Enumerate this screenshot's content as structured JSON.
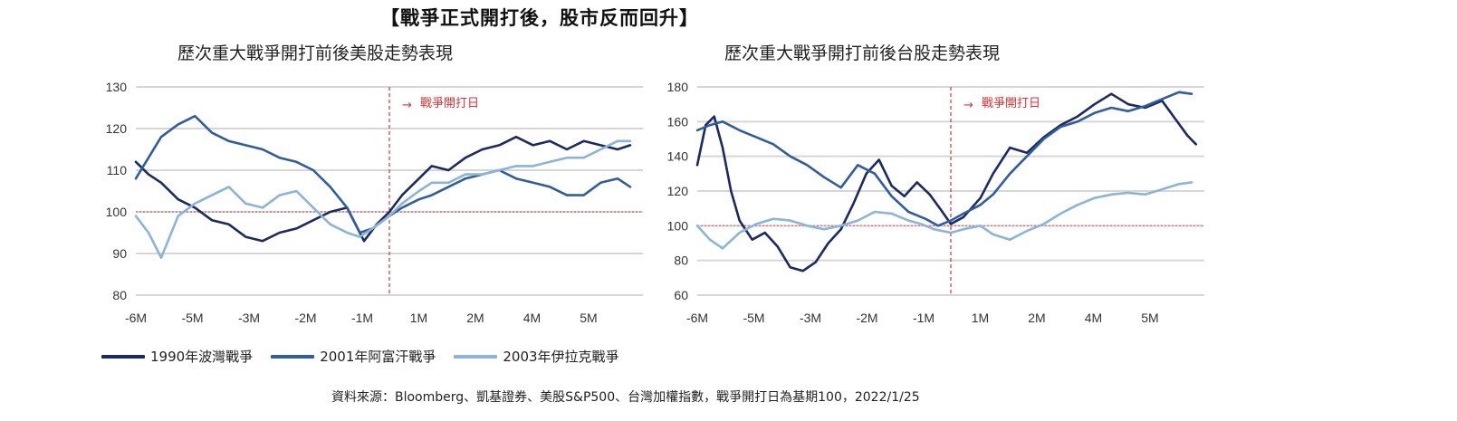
{
  "title": "【戰爭正式開打後，股市反而回升】",
  "source": "資料來源：Bloomberg、凱基證券、美股S&P500、台灣加權指數，戰爭開打日為基期100，2022/1/25",
  "legend": [
    {
      "name": "1990年波灣戰爭",
      "color": "#1b2a63"
    },
    {
      "name": "2001年阿富汗戰爭",
      "color": "#2f5d9e"
    },
    {
      "name": "2003年伊拉克戰爭",
      "color": "#8bb4d8"
    }
  ],
  "colors": {
    "baseline": "#e06060",
    "war_line": "#e03030",
    "grid": "#d6d6d6",
    "gridband": "#eeeeee"
  },
  "chart_data": [
    {
      "type": "line",
      "title": "歷次重大戰爭開打前後美股走勢表現",
      "annotation": "戰爭開打日",
      "annotation_arrow": "→",
      "x_ticks": [
        "-6M",
        "-5M",
        "-3M",
        "-2M",
        "-1M",
        "1M",
        "2M",
        "4M",
        "5M"
      ],
      "y_ticks": [
        "130",
        "120",
        "110",
        "100",
        "90",
        "80"
      ],
      "xlim": [
        -6,
        6
      ],
      "ylim": [
        80,
        130
      ],
      "baseline": 100,
      "war_x": 0,
      "series": [
        {
          "name": "1990年波灣戰爭",
          "x": [
            -6,
            -5.7,
            -5.4,
            -5.0,
            -4.6,
            -4.2,
            -3.8,
            -3.4,
            -3.0,
            -2.6,
            -2.2,
            -1.8,
            -1.4,
            -1.0,
            -0.6,
            -0.3,
            0,
            0.3,
            0.7,
            1.0,
            1.4,
            1.8,
            2.2,
            2.6,
            3.0,
            3.4,
            3.8,
            4.2,
            4.6,
            5.0,
            5.4,
            5.7
          ],
          "y": [
            112,
            109,
            107,
            103,
            101,
            98,
            97,
            94,
            93,
            95,
            96,
            98,
            100,
            101,
            93,
            97,
            100,
            104,
            108,
            111,
            110,
            113,
            115,
            116,
            118,
            116,
            117,
            115,
            117,
            116,
            115,
            116
          ]
        },
        {
          "name": "2001年阿富汗戰爭",
          "x": [
            -6,
            -5.7,
            -5.4,
            -5.0,
            -4.6,
            -4.2,
            -3.8,
            -3.4,
            -3.0,
            -2.6,
            -2.2,
            -1.8,
            -1.4,
            -1.0,
            -0.7,
            -0.4,
            0,
            0.3,
            0.7,
            1.0,
            1.4,
            1.8,
            2.2,
            2.6,
            3.0,
            3.4,
            3.8,
            4.2,
            4.6,
            5.0,
            5.4,
            5.7
          ],
          "y": [
            108,
            113,
            118,
            121,
            123,
            119,
            117,
            116,
            115,
            113,
            112,
            110,
            106,
            101,
            95,
            96,
            99,
            101,
            103,
            104,
            106,
            108,
            109,
            110,
            108,
            107,
            106,
            104,
            104,
            107,
            108,
            106
          ]
        },
        {
          "name": "2003年伊拉克戰爭",
          "x": [
            -6,
            -5.7,
            -5.4,
            -5.0,
            -4.6,
            -4.2,
            -3.8,
            -3.4,
            -3.0,
            -2.6,
            -2.2,
            -1.8,
            -1.4,
            -1.0,
            -0.7,
            -0.4,
            0,
            0.3,
            0.7,
            1.0,
            1.4,
            1.8,
            2.2,
            2.6,
            3.0,
            3.4,
            3.8,
            4.2,
            4.6,
            5.0,
            5.4,
            5.7
          ],
          "y": [
            99,
            95,
            89,
            99,
            102,
            104,
            106,
            102,
            101,
            104,
            105,
            101,
            97,
            95,
            94,
            96,
            99,
            102,
            105,
            107,
            107,
            109,
            109,
            110,
            111,
            111,
            112,
            113,
            113,
            115,
            117,
            117
          ]
        }
      ]
    },
    {
      "type": "line",
      "title": "歷次重大戰爭開打前後台股走勢表現",
      "annotation": "戰爭開打日",
      "annotation_arrow": "→",
      "x_ticks": [
        "-6M",
        "-5M",
        "-3M",
        "-2M",
        "-1M",
        "1M",
        "2M",
        "4M",
        "5M"
      ],
      "y_ticks": [
        "180",
        "160",
        "140",
        "120",
        "100",
        "80",
        "60"
      ],
      "xlim": [
        -6,
        6
      ],
      "ylim": [
        60,
        180
      ],
      "baseline": 100,
      "war_x": 0,
      "series": [
        {
          "name": "1990年波灣戰爭",
          "x": [
            -6,
            -5.8,
            -5.6,
            -5.4,
            -5.2,
            -5.0,
            -4.7,
            -4.4,
            -4.1,
            -3.8,
            -3.5,
            -3.2,
            -2.9,
            -2.6,
            -2.3,
            -2.0,
            -1.7,
            -1.4,
            -1.1,
            -0.8,
            -0.5,
            -0.2,
            0,
            0.3,
            0.7,
            1.0,
            1.4,
            1.8,
            2.2,
            2.6,
            3.0,
            3.4,
            3.8,
            4.2,
            4.6,
            5.0,
            5.3,
            5.6,
            5.8
          ],
          "y": [
            135,
            158,
            163,
            145,
            120,
            103,
            92,
            96,
            88,
            76,
            74,
            79,
            90,
            98,
            113,
            130,
            138,
            123,
            117,
            125,
            118,
            108,
            101,
            105,
            116,
            130,
            145,
            142,
            151,
            158,
            163,
            170,
            176,
            170,
            168,
            172,
            162,
            152,
            147
          ]
        },
        {
          "name": "2001年阿富汗戰爭",
          "x": [
            -6,
            -5.7,
            -5.4,
            -5.0,
            -4.6,
            -4.2,
            -3.8,
            -3.4,
            -3.0,
            -2.6,
            -2.2,
            -1.8,
            -1.4,
            -1.0,
            -0.6,
            -0.3,
            0,
            0.3,
            0.7,
            1.0,
            1.4,
            1.8,
            2.2,
            2.6,
            3.0,
            3.4,
            3.8,
            4.2,
            4.6,
            5.0,
            5.4,
            5.7
          ],
          "y": [
            155,
            158,
            160,
            155,
            151,
            147,
            140,
            135,
            128,
            122,
            135,
            130,
            117,
            108,
            104,
            100,
            103,
            107,
            112,
            118,
            130,
            140,
            150,
            157,
            160,
            165,
            168,
            166,
            169,
            173,
            177,
            176
          ]
        },
        {
          "name": "2003年伊拉克戰爭",
          "x": [
            -6,
            -5.7,
            -5.4,
            -5.0,
            -4.6,
            -4.2,
            -3.8,
            -3.4,
            -3.0,
            -2.6,
            -2.2,
            -1.8,
            -1.4,
            -1.0,
            -0.7,
            -0.4,
            0,
            0.3,
            0.7,
            1.0,
            1.4,
            1.8,
            2.2,
            2.6,
            3.0,
            3.4,
            3.8,
            4.2,
            4.6,
            5.0,
            5.4,
            5.7
          ],
          "y": [
            100,
            92,
            87,
            96,
            101,
            104,
            103,
            100,
            98,
            100,
            103,
            108,
            107,
            103,
            101,
            98,
            96,
            98,
            100,
            95,
            92,
            97,
            101,
            107,
            112,
            116,
            118,
            119,
            118,
            121,
            124,
            125
          ]
        }
      ]
    }
  ]
}
